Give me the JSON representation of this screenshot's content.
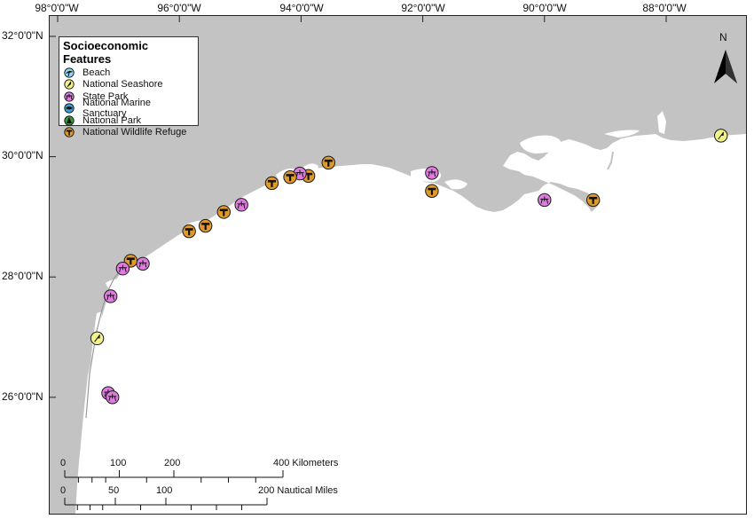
{
  "graticule": {
    "longitude_labels": [
      "98°0'0\"W",
      "96°0'0\"W",
      "94°0'0\"W",
      "92°0'0\"W",
      "90°0'0\"W",
      "88°0'0\"W"
    ],
    "latitude_labels": [
      "32°0'0\"N",
      "30°0'0\"N",
      "28°0'0\"N",
      "26°0'0\"N"
    ]
  },
  "legend": {
    "title": "Socioeconomic Features",
    "items": [
      {
        "label": "Beach",
        "icon": "beach-icon",
        "color": "#8fd6f0"
      },
      {
        "label": "National Seashore",
        "icon": "national-seashore-icon",
        "color": "#f2f28a"
      },
      {
        "label": "State Park",
        "icon": "state-park-icon",
        "color": "#e07be0"
      },
      {
        "label": "National Marine Sanctuary",
        "icon": "marine-sanctuary-icon",
        "color": "#3aa0d8"
      },
      {
        "label": "National Park",
        "icon": "national-park-icon",
        "color": "#3a9a3a"
      },
      {
        "label": "National Wildlife Refuge",
        "icon": "wildlife-refuge-icon",
        "color": "#e09a2a"
      }
    ]
  },
  "north_arrow": {
    "label": "N"
  },
  "scale_bar": {
    "km_numbers": [
      "0",
      "100",
      "200"
    ],
    "km_end_label": "400 Kilometers",
    "nm_numbers": [
      "0",
      "50",
      "100"
    ],
    "nm_end_label": "200 Nautical Miles"
  },
  "colors": {
    "land": "#c3c3c3",
    "water": "#ffffff",
    "marker_outline": "#1a1a1a"
  },
  "features": [
    {
      "type": "national-seashore",
      "lon": -87.1,
      "lat": 30.35
    },
    {
      "type": "wildlife-refuge",
      "lon": -89.2,
      "lat": 29.28
    },
    {
      "type": "state-park",
      "lon": -90.0,
      "lat": 29.28
    },
    {
      "type": "state-park",
      "lon": -91.85,
      "lat": 29.73
    },
    {
      "type": "wildlife-refuge",
      "lon": -91.85,
      "lat": 29.43
    },
    {
      "type": "wildlife-refuge",
      "lon": -93.55,
      "lat": 29.9
    },
    {
      "type": "wildlife-refuge",
      "lon": -93.88,
      "lat": 29.68
    },
    {
      "type": "state-park",
      "lon": -94.02,
      "lat": 29.72
    },
    {
      "type": "wildlife-refuge",
      "lon": -94.18,
      "lat": 29.66
    },
    {
      "type": "wildlife-refuge",
      "lon": -94.48,
      "lat": 29.56
    },
    {
      "type": "state-park",
      "lon": -94.98,
      "lat": 29.2
    },
    {
      "type": "wildlife-refuge",
      "lon": -95.27,
      "lat": 29.08
    },
    {
      "type": "wildlife-refuge",
      "lon": -95.57,
      "lat": 28.85
    },
    {
      "type": "wildlife-refuge",
      "lon": -95.84,
      "lat": 28.76
    },
    {
      "type": "state-park",
      "lon": -96.6,
      "lat": 28.22
    },
    {
      "type": "wildlife-refuge",
      "lon": -96.8,
      "lat": 28.27
    },
    {
      "type": "state-park",
      "lon": -96.93,
      "lat": 28.14
    },
    {
      "type": "state-park",
      "lon": -97.13,
      "lat": 27.68
    },
    {
      "type": "national-seashore",
      "lon": -97.35,
      "lat": 26.98
    },
    {
      "type": "state-park",
      "lon": -97.17,
      "lat": 26.07
    },
    {
      "type": "state-park",
      "lon": -97.1,
      "lat": 26.0
    }
  ]
}
